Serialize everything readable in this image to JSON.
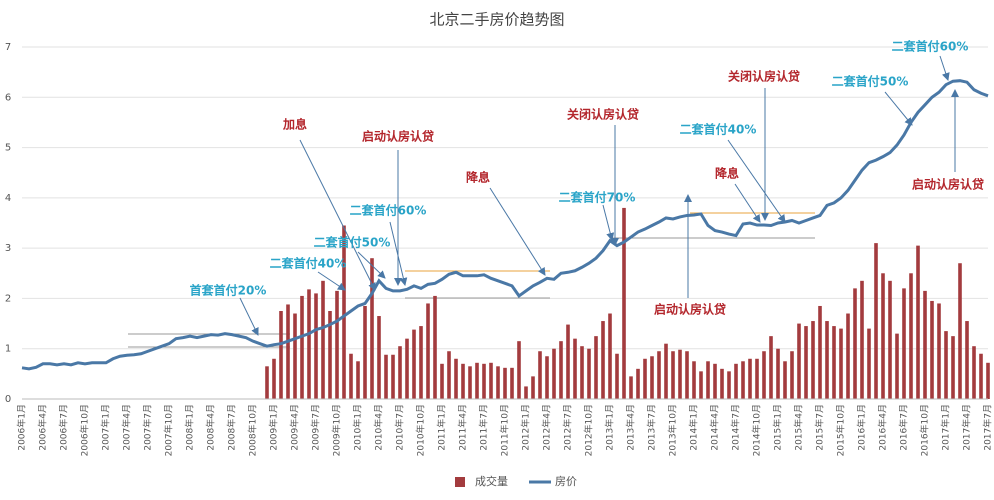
{
  "chart_data": {
    "type": "combo",
    "title": "北京二手房价趋势图",
    "categories": [
      "2006年1月",
      null,
      null,
      "2006年4月",
      null,
      null,
      "2006年7月",
      null,
      null,
      "2006年10月",
      null,
      null,
      "2007年1月",
      null,
      null,
      "2007年4月",
      null,
      null,
      "2007年7月",
      null,
      null,
      "2007年10月",
      null,
      null,
      "2008年1月",
      null,
      null,
      "2008年4月",
      null,
      null,
      "2008年7月",
      null,
      null,
      "2008年10月",
      null,
      null,
      "2009年1月",
      null,
      null,
      "2009年4月",
      null,
      null,
      "2009年7月",
      null,
      null,
      "2009年10月",
      null,
      null,
      "2010年1月",
      null,
      null,
      "2010年4月",
      null,
      null,
      "2010年7月",
      null,
      null,
      "2010年10月",
      null,
      null,
      "2011年1月",
      null,
      null,
      "2011年4月",
      null,
      null,
      "2011年7月",
      null,
      null,
      "2011年10月",
      null,
      null,
      "2012年1月",
      null,
      null,
      "2012年4月",
      null,
      null,
      "2012年7月",
      null,
      null,
      "2012年10月",
      null,
      null,
      "2013年1月",
      null,
      null,
      "2013年4月",
      null,
      null,
      "2013年7月",
      null,
      null,
      "2013年10月",
      null,
      null,
      "2014年1月",
      null,
      null,
      "2014年4月",
      null,
      null,
      "2014年7月",
      null,
      null,
      "2014年10月",
      null,
      null,
      "2015年1月",
      null,
      null,
      "2015年4月",
      null,
      null,
      "2015年7月",
      null,
      null,
      "2015年10月",
      null,
      null,
      "2016年1月",
      null,
      null,
      "2016年4月",
      null,
      null,
      "2016年7月",
      null,
      null,
      "2016年10月",
      null,
      null,
      "2017年1月",
      null,
      null,
      "2017年4月",
      null,
      null,
      "2017年7月"
    ],
    "series": [
      {
        "name": "成交量",
        "type": "bar",
        "color": "#a33b3e",
        "values": [
          null,
          null,
          null,
          null,
          null,
          null,
          null,
          null,
          null,
          null,
          null,
          null,
          null,
          null,
          null,
          null,
          null,
          null,
          null,
          null,
          null,
          null,
          null,
          null,
          null,
          null,
          null,
          null,
          null,
          null,
          null,
          null,
          null,
          null,
          null,
          0.65,
          0.8,
          1.75,
          1.88,
          1.7,
          2.05,
          2.18,
          2.1,
          2.35,
          1.75,
          2.15,
          3.45,
          0.9,
          0.75,
          1.85,
          2.8,
          1.65,
          0.88,
          0.88,
          1.05,
          1.2,
          1.38,
          1.45,
          1.9,
          2.05,
          0.7,
          0.95,
          0.8,
          0.7,
          0.65,
          0.72,
          0.7,
          0.72,
          0.65,
          0.62,
          0.62,
          1.15,
          0.25,
          0.45,
          0.95,
          0.85,
          1.0,
          1.15,
          1.48,
          1.2,
          1.05,
          1.0,
          1.25,
          1.55,
          1.7,
          0.9,
          3.8,
          0.45,
          0.6,
          0.8,
          0.85,
          0.95,
          1.1,
          0.95,
          0.98,
          0.95,
          0.75,
          0.55,
          0.75,
          0.7,
          0.6,
          0.55,
          0.7,
          0.75,
          0.8,
          0.8,
          0.95,
          1.25,
          1.0,
          0.75,
          0.95,
          1.5,
          1.45,
          1.55,
          1.85,
          1.55,
          1.45,
          1.4,
          1.7,
          2.2,
          2.35,
          1.4,
          3.1,
          2.5,
          2.35,
          1.3,
          2.2,
          2.5,
          3.05,
          2.15,
          1.95,
          1.9,
          1.35,
          1.25,
          2.7,
          1.55,
          1.05,
          0.9,
          0.72
        ]
      },
      {
        "name": "房价",
        "type": "line",
        "color": "#4a78a6",
        "values": [
          0.62,
          0.6,
          0.63,
          0.7,
          0.7,
          0.68,
          0.7,
          0.68,
          0.72,
          0.7,
          0.72,
          0.72,
          0.72,
          0.8,
          0.85,
          0.87,
          0.88,
          0.9,
          0.95,
          1.0,
          1.05,
          1.1,
          1.2,
          1.22,
          1.25,
          1.22,
          1.25,
          1.28,
          1.27,
          1.3,
          1.28,
          1.25,
          1.22,
          1.15,
          1.1,
          1.05,
          1.08,
          1.1,
          1.15,
          1.2,
          1.25,
          1.3,
          1.38,
          1.42,
          1.48,
          1.55,
          1.65,
          1.75,
          1.85,
          1.9,
          2.1,
          2.35,
          2.2,
          2.15,
          2.15,
          2.18,
          2.25,
          2.2,
          2.28,
          2.3,
          2.38,
          2.48,
          2.52,
          2.45,
          2.45,
          2.45,
          2.47,
          2.4,
          2.35,
          2.3,
          2.25,
          2.05,
          2.15,
          2.25,
          2.32,
          2.4,
          2.38,
          2.5,
          2.52,
          2.55,
          2.62,
          2.7,
          2.8,
          2.95,
          3.15,
          3.05,
          3.12,
          3.22,
          3.32,
          3.38,
          3.45,
          3.52,
          3.6,
          3.58,
          3.62,
          3.65,
          3.66,
          3.68,
          3.45,
          3.35,
          3.32,
          3.28,
          3.25,
          3.48,
          3.5,
          3.46,
          3.46,
          3.45,
          3.5,
          3.52,
          3.55,
          3.5,
          3.55,
          3.6,
          3.65,
          3.85,
          3.9,
          4.0,
          4.15,
          4.35,
          4.55,
          4.7,
          4.75,
          4.82,
          4.9,
          5.05,
          5.25,
          5.5,
          5.7,
          5.85,
          6.0,
          6.1,
          6.25,
          6.32,
          6.33,
          6.3,
          6.15,
          6.08,
          6.03
        ]
      }
    ],
    "ylim": [
      0,
      7
    ],
    "yticks": [
      0,
      1,
      2,
      3,
      4,
      5,
      6,
      7
    ],
    "grid": true,
    "annotations": [
      {
        "text": "加息",
        "color": "#b3262c"
      },
      {
        "text": "启动认房认贷",
        "color": "#b3262c"
      },
      {
        "text": "二套首付60%",
        "color": "#2aa4c8"
      },
      {
        "text": "二套首付50%",
        "color": "#2aa4c8"
      },
      {
        "text": "二套首付40%",
        "color": "#2aa4c8"
      },
      {
        "text": "首套首付20%",
        "color": "#2aa4c8"
      },
      {
        "text": "降息",
        "color": "#b3262c"
      },
      {
        "text": "关闭认房认贷",
        "color": "#b3262c"
      },
      {
        "text": "二套首付70%",
        "color": "#2aa4c8"
      },
      {
        "text": "启动认房认贷",
        "color": "#b3262c"
      },
      {
        "text": "降息",
        "color": "#b3262c"
      },
      {
        "text": "二套首付40%",
        "color": "#2aa4c8"
      },
      {
        "text": "关闭认房认贷",
        "color": "#b3262c"
      },
      {
        "text": "二套首付50%",
        "color": "#2aa4c8"
      },
      {
        "text": "二套首付60%",
        "color": "#2aa4c8"
      },
      {
        "text": "启动认房认贷",
        "color": "#b3262c"
      }
    ]
  }
}
